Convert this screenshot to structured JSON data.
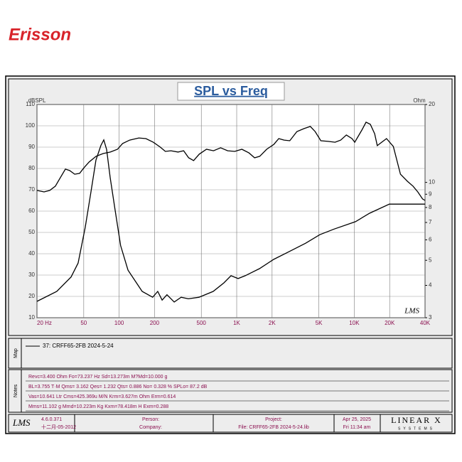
{
  "brand": "Erisson",
  "chart_data": {
    "type": "line",
    "title": "SPL vs Freq",
    "y_label": "dBSPL",
    "y2_label": "Ohm",
    "watermark": "LMS",
    "xlog": true,
    "xlim": [
      20,
      40000
    ],
    "xticks": [
      {
        "value": 20,
        "label": "20 Hz"
      },
      50,
      100,
      200,
      500,
      {
        "value": 1000,
        "label": "1K"
      },
      {
        "value": 2000,
        "label": "2K"
      },
      {
        "value": 5000,
        "label": "5K"
      },
      {
        "value": 10000,
        "label": "10K"
      },
      {
        "value": 20000,
        "label": "20K"
      },
      {
        "value": 40000,
        "label": "40K"
      }
    ],
    "ylim": [
      10,
      110
    ],
    "yticks": [
      10,
      20,
      30,
      40,
      50,
      60,
      70,
      80,
      90,
      100,
      110
    ],
    "y2log": true,
    "y2lim": [
      3,
      20
    ],
    "y2ticks": [
      3,
      4,
      5,
      6,
      7,
      8,
      9,
      10,
      20
    ],
    "grid": true,
    "series": [
      {
        "name": "SPL",
        "color": "#000000",
        "x": [
          20,
          23,
          25.7,
          28.7,
          31.6,
          34.9,
          38,
          41.9,
          46.1,
          50.2,
          55.5,
          63.6,
          73.2,
          84.3,
          96.9,
          107,
          123,
          147,
          169,
          195,
          224,
          247,
          276,
          317,
          354,
          390,
          430,
          480,
          553,
          635,
          730,
          838,
          963,
          1106,
          1271,
          1420,
          1570,
          1800,
          2070,
          2280,
          2530,
          2830,
          3250,
          3740,
          4230,
          4650,
          5200,
          5980,
          6870,
          7670,
          8570,
          9560,
          10100,
          11600,
          12600,
          13700,
          14900,
          15700,
          17100,
          18800,
          21500,
          24700,
          28300,
          31600,
          34700,
          38100,
          40000
        ],
        "values": [
          69.7,
          69,
          69.7,
          71.7,
          75.7,
          79.7,
          79,
          77.3,
          77.7,
          80.3,
          83,
          85.7,
          87,
          87.7,
          89,
          91.7,
          93.3,
          94.3,
          94,
          92.3,
          90,
          88,
          88.3,
          87.7,
          88.3,
          85,
          83.7,
          86.7,
          89,
          88.3,
          89.7,
          88.3,
          88,
          89,
          87.3,
          85,
          85.7,
          89,
          91.3,
          94,
          93.3,
          93,
          97.3,
          98.7,
          99.7,
          97.3,
          93,
          92.7,
          92.3,
          93.3,
          95.7,
          94,
          92.3,
          98,
          101.7,
          100.7,
          96.3,
          90.7,
          92.3,
          94,
          90.3,
          77.3,
          74,
          71.7,
          69,
          65.7,
          65
        ]
      },
      {
        "name": "Impedance",
        "color": "#000000",
        "axis": "y2",
        "x": [
          20,
          29.5,
          39,
          44.8,
          51.5,
          57.6,
          63.5,
          70,
          74,
          78.3,
          84,
          92.5,
          103,
          119,
          157,
          193,
          213,
          232,
          255,
          294,
          337,
          388,
          478,
          631,
          778,
          894,
          1028,
          1181,
          1560,
          2060,
          2720,
          3860,
          5090,
          6730,
          10230,
          13500,
          19900,
          40000
        ],
        "values": [
          3.47,
          3.79,
          4.31,
          4.88,
          6.7,
          9.2,
          12.2,
          13.9,
          14.6,
          13.4,
          10.4,
          7.8,
          5.7,
          4.58,
          3.79,
          3.6,
          3.79,
          3.51,
          3.68,
          3.45,
          3.6,
          3.55,
          3.6,
          3.79,
          4.09,
          4.36,
          4.25,
          4.36,
          4.64,
          5.04,
          5.37,
          5.82,
          6.28,
          6.6,
          7.05,
          7.6,
          8.24,
          8.24
        ]
      }
    ]
  },
  "map": {
    "label": "Map",
    "entry": "37: CRFF65-2FB 2024-5-24"
  },
  "notes": {
    "label": "Notes",
    "lines": [
      "Revc=3.400 Ohm  Fo=73.237 Hz  Sd=13.273m M?Md=10.000 g",
      "BL=3.755 T·M  Qms= 3.162  Qes= 1.232  Qts= 0.886  No= 0.328 %  SPLo= 87.2 dB",
      "Vas=10.641 Ltr  Cms=425.369u M/N  Krm=3.627m Ohm  Erm=0.614",
      "Mms=11.102 g  Mmd=10.223m Kg  Kxm=78.418m H  Exm=0.288"
    ]
  },
  "footer": {
    "logo": "LMS",
    "version": "4.6.0.371",
    "build_date": "十二月-05-2012",
    "person": "Person:",
    "company": "Company:",
    "project": "Project:",
    "file": "File: CRFF65-2FB 2024-5-24.lib",
    "date": "Apr 25, 2025",
    "time": "Fri 11:34 am",
    "vendor": "LINEAR X",
    "vendor_sub": "SYSTEMS"
  }
}
